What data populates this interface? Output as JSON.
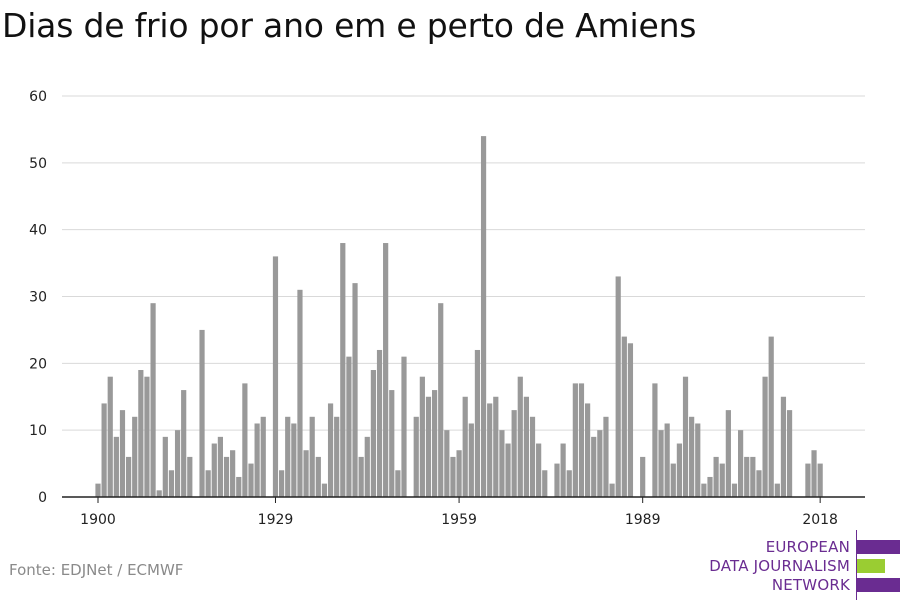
{
  "title": "Dias de frio por ano em e perto de Amiens",
  "source": "Fonte: EDJNet / ECMWF",
  "logo": {
    "line1": "EUROPEAN",
    "line2": "DATA JOURNALISM",
    "line3": "NETWORK",
    "colors": {
      "text": "#6a2c91",
      "purple": "#6a2c91",
      "green": "#9acd32"
    }
  },
  "chart_data": {
    "type": "bar",
    "title": "Dias de frio por ano em e perto de Amiens",
    "xlabel": "",
    "ylabel": "",
    "ylim": [
      0,
      60
    ],
    "yticks": [
      0,
      10,
      20,
      30,
      40,
      50,
      60
    ],
    "xticks": [
      1900,
      1929,
      1959,
      1989,
      2018
    ],
    "grid": true,
    "bar_color": "#999999",
    "categories": [
      1900,
      1901,
      1902,
      1903,
      1904,
      1905,
      1906,
      1907,
      1908,
      1909,
      1910,
      1911,
      1912,
      1913,
      1914,
      1915,
      1916,
      1917,
      1918,
      1919,
      1920,
      1921,
      1922,
      1923,
      1924,
      1925,
      1926,
      1927,
      1928,
      1929,
      1930,
      1931,
      1932,
      1933,
      1934,
      1935,
      1936,
      1937,
      1938,
      1939,
      1940,
      1941,
      1942,
      1943,
      1944,
      1945,
      1946,
      1947,
      1948,
      1949,
      1950,
      1951,
      1952,
      1953,
      1954,
      1955,
      1956,
      1957,
      1958,
      1959,
      1960,
      1961,
      1962,
      1963,
      1964,
      1965,
      1966,
      1967,
      1968,
      1969,
      1970,
      1971,
      1972,
      1973,
      1974,
      1975,
      1976,
      1977,
      1978,
      1979,
      1980,
      1981,
      1982,
      1983,
      1984,
      1985,
      1986,
      1987,
      1988,
      1989,
      1990,
      1991,
      1992,
      1993,
      1994,
      1995,
      1996,
      1997,
      1998,
      1999,
      2000,
      2001,
      2002,
      2003,
      2004,
      2005,
      2006,
      2007,
      2008,
      2009,
      2010,
      2011,
      2012,
      2013,
      2014,
      2015,
      2016,
      2017,
      2018
    ],
    "values": [
      2,
      14,
      18,
      9,
      13,
      6,
      12,
      19,
      18,
      29,
      1,
      9,
      4,
      10,
      16,
      6,
      0,
      25,
      4,
      8,
      9,
      6,
      7,
      3,
      17,
      5,
      11,
      12,
      0,
      36,
      4,
      12,
      11,
      31,
      7,
      12,
      6,
      2,
      14,
      12,
      38,
      21,
      32,
      6,
      9,
      19,
      22,
      38,
      16,
      4,
      21,
      0,
      12,
      18,
      15,
      16,
      29,
      10,
      6,
      7,
      15,
      11,
      22,
      54,
      14,
      15,
      10,
      8,
      13,
      18,
      15,
      12,
      8,
      4,
      0,
      5,
      8,
      4,
      17,
      17,
      14,
      9,
      10,
      12,
      2,
      33,
      24,
      23,
      0,
      6,
      0,
      17,
      10,
      11,
      5,
      8,
      18,
      12,
      11,
      2,
      3,
      6,
      5,
      13,
      2,
      10,
      6,
      6,
      4,
      18,
      24,
      2,
      15,
      13,
      0,
      0,
      5,
      7,
      5
    ]
  }
}
